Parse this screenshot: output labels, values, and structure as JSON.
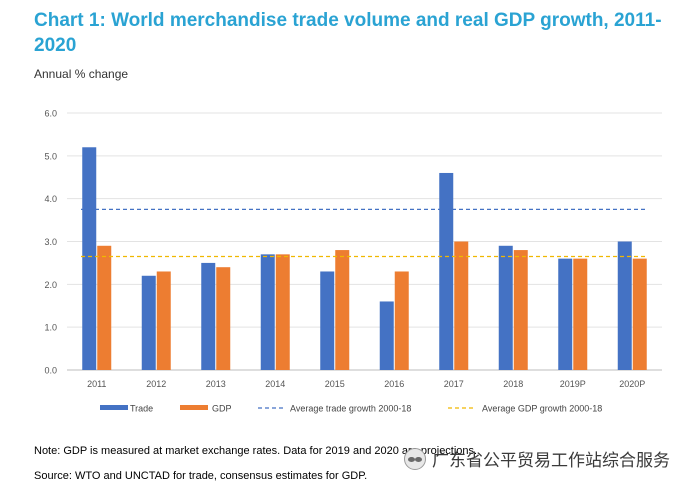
{
  "chart_data": {
    "type": "bar",
    "title": "Chart 1: World merchandise trade volume and real GDP growth, 2011-2020",
    "ylabel": "Annual % change",
    "categories": [
      "2011",
      "2012",
      "2013",
      "2014",
      "2015",
      "2016",
      "2017",
      "2018",
      "2019P",
      "2020P"
    ],
    "series": [
      {
        "name": "Trade",
        "color": "#4472c4",
        "values": [
          5.2,
          2.2,
          2.5,
          2.7,
          2.3,
          1.6,
          4.6,
          2.9,
          2.6,
          3.0
        ]
      },
      {
        "name": "GDP",
        "color": "#ed7d31",
        "values": [
          2.9,
          2.3,
          2.4,
          2.7,
          2.8,
          2.3,
          3.0,
          2.8,
          2.6,
          2.6
        ]
      }
    ],
    "reference_lines": [
      {
        "name": "Average trade growth 2000-18",
        "value": 3.75,
        "color": "#4472c4",
        "style": "dashed"
      },
      {
        "name": "Average GDP growth 2000-18",
        "value": 2.65,
        "color": "#f0b800",
        "style": "dashed"
      }
    ],
    "ylim": [
      0,
      6
    ],
    "yticks": [
      "0.0",
      "1.0",
      "2.0",
      "3.0",
      "4.0",
      "5.0",
      "6.0"
    ],
    "grid": true,
    "legend_position": "bottom"
  },
  "notes": {
    "note": "Note: GDP is measured at market exchange rates. Data for 2019 and 2020 are projections.",
    "source": "Source: WTO and UNCTAD for trade, consensus estimates for GDP."
  },
  "watermark": {
    "text": "广东省公平贸易工作站综合服务"
  }
}
